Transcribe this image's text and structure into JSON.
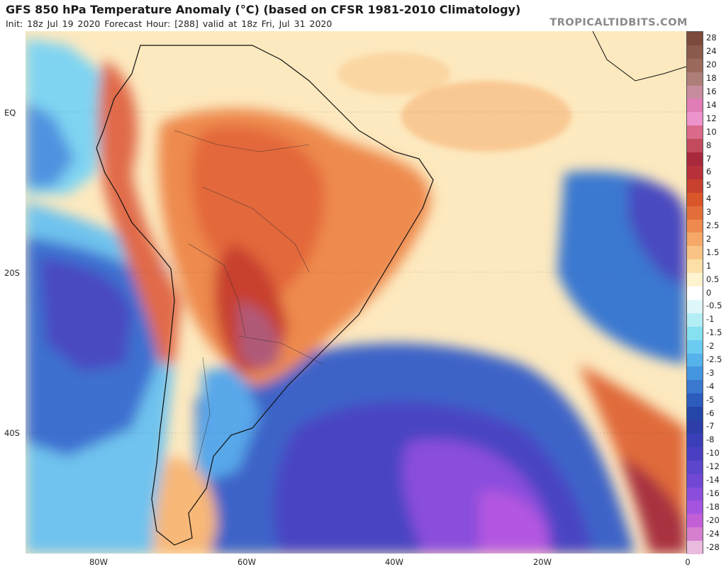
{
  "header": {
    "title": "GFS 850 hPa Temperature Anomaly (°C) (based on CFSR 1981-2010 Climatology)",
    "subtitle": "Init: 18z Jul 19 2020   Forecast Hour: [288]   valid at 18z Fri, Jul 31 2020",
    "brand": "TROPICALTIDBITS.COM"
  },
  "axes": {
    "lat_labels": [
      "EQ",
      "20S",
      "40S"
    ],
    "lon_labels": [
      "80W",
      "60W",
      "40W",
      "20W",
      "0"
    ]
  },
  "colorbar": {
    "labels": [
      "28",
      "24",
      "20",
      "18",
      "16",
      "14",
      "12",
      "10",
      "8",
      "7",
      "6",
      "5",
      "4",
      "3",
      "2.5",
      "2",
      "1.5",
      "1",
      "0.5",
      "0",
      "-0.5",
      "-1",
      "-1.5",
      "-2",
      "-2.5",
      "-3",
      "-4",
      "-5",
      "-6",
      "-7",
      "-8",
      "-10",
      "-12",
      "-14",
      "-16",
      "-18",
      "-20",
      "-24",
      "-28"
    ],
    "colors": [
      "#7c4a3c",
      "#8a5a4c",
      "#9b6a5c",
      "#ae7f78",
      "#c68c9e",
      "#e07cb6",
      "#ec92cc",
      "#d96a8a",
      "#c24a5c",
      "#a8283c",
      "#b8303a",
      "#c8402e",
      "#d9552a",
      "#e36e3a",
      "#ee8a4e",
      "#f5a868",
      "#f8c486",
      "#fbdfa6",
      "#fdf3cf",
      "#ffffff",
      "#dff7fb",
      "#b3eef5",
      "#86e0f0",
      "#6ccbf0",
      "#55b2ea",
      "#4596e0",
      "#3b78d0",
      "#2d5cbf",
      "#2446a8",
      "#2d3ea8",
      "#3a3fb8",
      "#4a3fc2",
      "#5c46cc",
      "#7048d4",
      "#8a4ddc",
      "#a454e0",
      "#c25fd6",
      "#d77fcf",
      "#ebbadf"
    ]
  }
}
